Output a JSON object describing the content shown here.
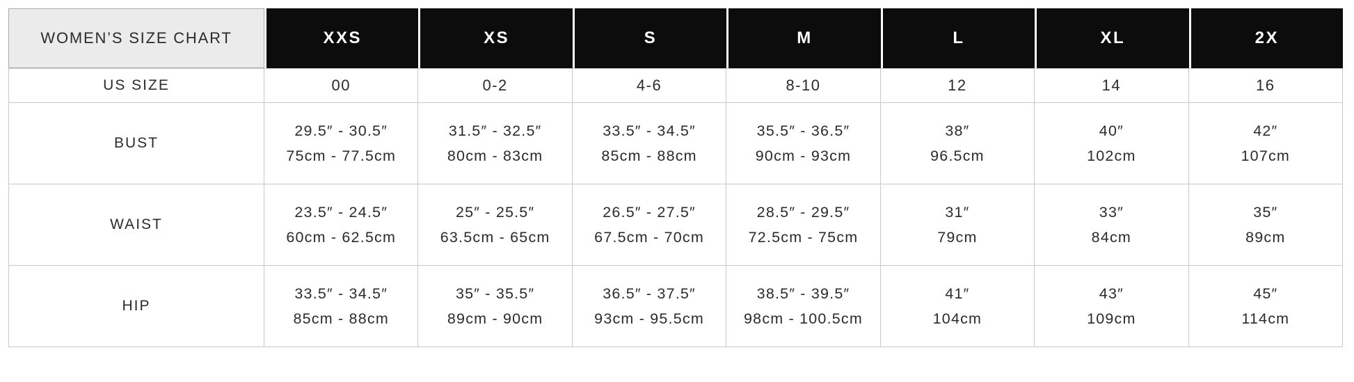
{
  "table": {
    "title": "WOMEN’S SIZE CHART",
    "sizes": [
      "XXS",
      "XS",
      "S",
      "M",
      "L",
      "XL",
      "2X"
    ],
    "rows": [
      {
        "label": "US SIZE",
        "values": [
          "00",
          "0-2",
          "4-6",
          "8-10",
          "12",
          "14",
          "16"
        ]
      },
      {
        "label": "BUST",
        "in": [
          "29.5″ - 30.5″",
          "31.5″ - 32.5″",
          "33.5″ - 34.5″",
          "35.5″ - 36.5″",
          "38″",
          "40″",
          "42″"
        ],
        "cm": [
          "75cm - 77.5cm",
          "80cm - 83cm",
          "85cm - 88cm",
          "90cm - 93cm",
          "96.5cm",
          "102cm",
          "107cm"
        ]
      },
      {
        "label": "WAIST",
        "in": [
          "23.5″ - 24.5″",
          "25″ - 25.5″",
          "26.5″ - 27.5″",
          "28.5″ - 29.5″",
          "31″",
          "33″",
          "35″"
        ],
        "cm": [
          "60cm - 62.5cm",
          "63.5cm - 65cm",
          "67.5cm - 70cm",
          "72.5cm - 75cm",
          "79cm",
          "84cm",
          "89cm"
        ]
      },
      {
        "label": "HIP",
        "in": [
          "33.5″ - 34.5″",
          "35″ - 35.5″",
          "36.5″ - 37.5″",
          "38.5″ - 39.5″",
          "41″",
          "43″",
          "45″"
        ],
        "cm": [
          "85cm - 88cm",
          "89cm - 90cm",
          "93cm - 95.5cm",
          "98cm - 100.5cm",
          "104cm",
          "109cm",
          "114cm"
        ]
      }
    ]
  },
  "colors": {
    "header_black": "#0c0c0c",
    "header_gray": "#ebebeb",
    "grid_line": "#c8c8c8",
    "text": "#2b2b2b"
  }
}
